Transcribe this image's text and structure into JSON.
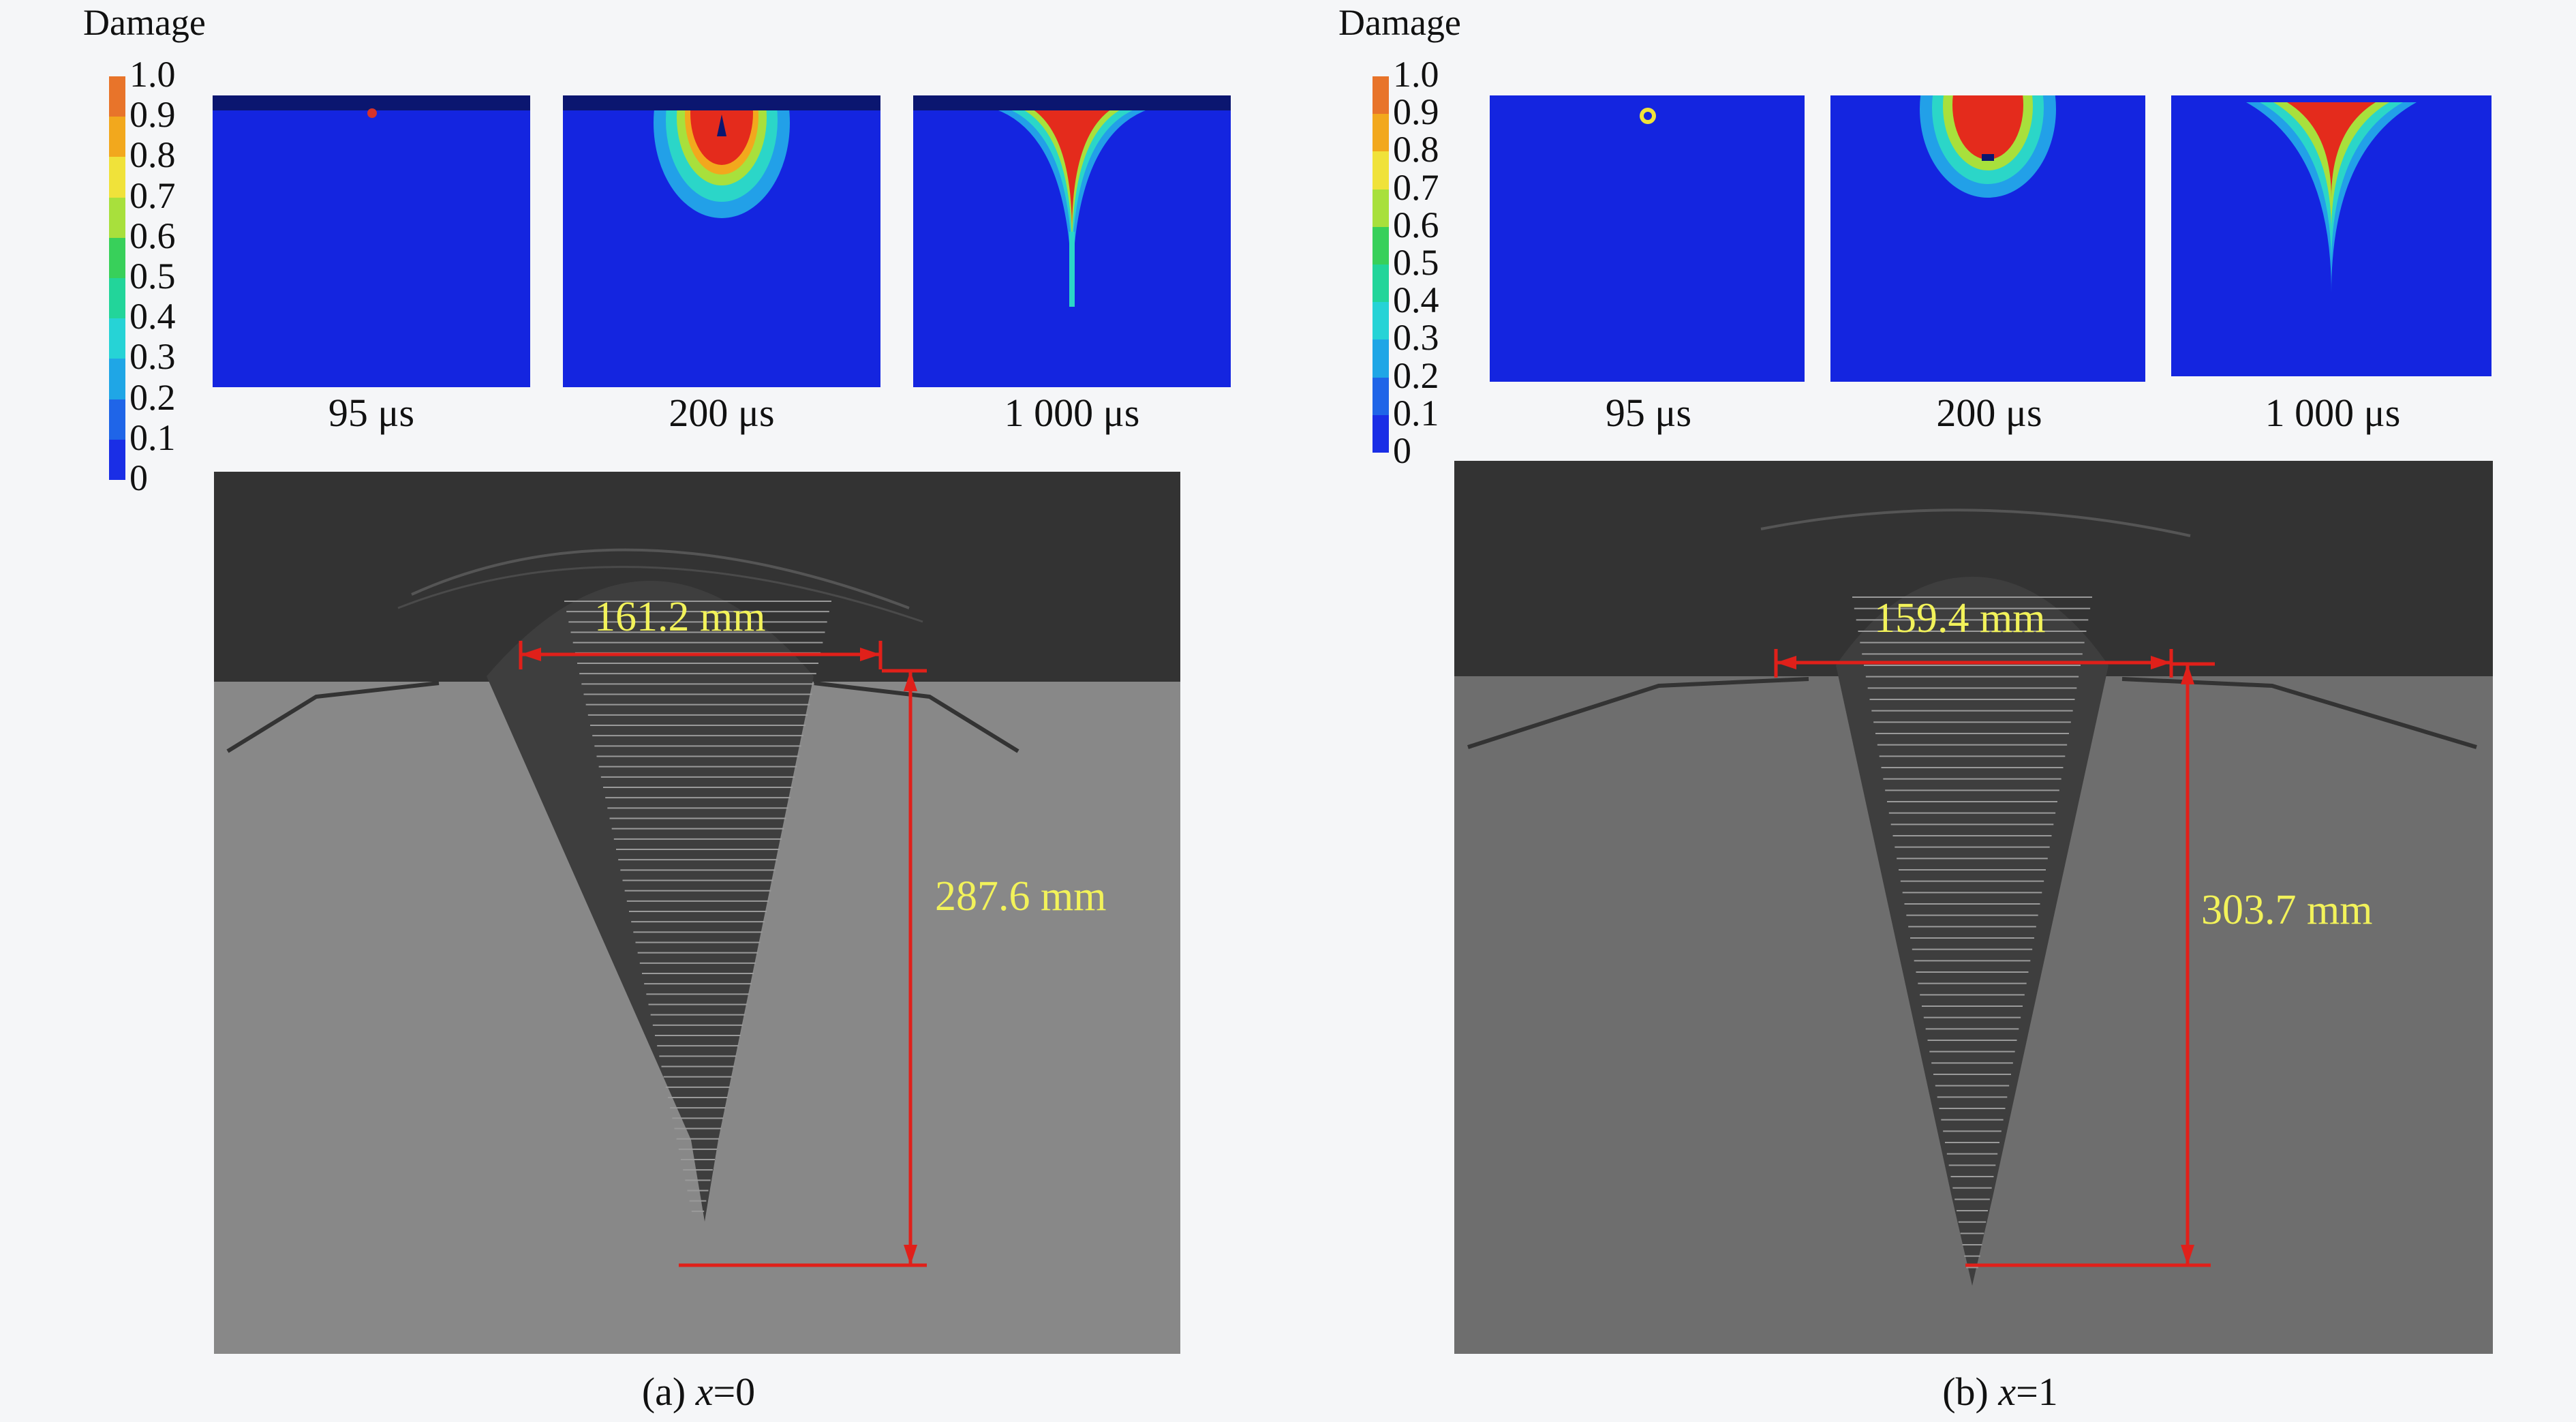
{
  "legend": {
    "title": "Damage",
    "ticks": [
      "1.0",
      "0.9",
      "0.8",
      "0.7",
      "0.6",
      "0.5",
      "0.4",
      "0.3",
      "0.2",
      "0.1",
      "0"
    ],
    "colors": [
      "#e8742a",
      "#f2a81d",
      "#f0e23a",
      "#a8e03c",
      "#38d05a",
      "#22d59a",
      "#26d3d6",
      "#1fa6e6",
      "#1f65e8",
      "#1a2ee6",
      "#0a10d8"
    ]
  },
  "panel_a": {
    "times": [
      "95 μs",
      "200 μs",
      "1 000 μs"
    ],
    "width_label": "161.2 mm",
    "depth_label": "287.6 mm",
    "caption_prefix": "(a) ",
    "caption_var": "x",
    "caption_value": "=0"
  },
  "panel_b": {
    "times": [
      "95 μs",
      "200 μs",
      "1 000 μs"
    ],
    "width_label": "159.4 mm",
    "depth_label": "303.7 mm",
    "caption_prefix": "(b) ",
    "caption_var": "x",
    "caption_value": "=1"
  }
}
